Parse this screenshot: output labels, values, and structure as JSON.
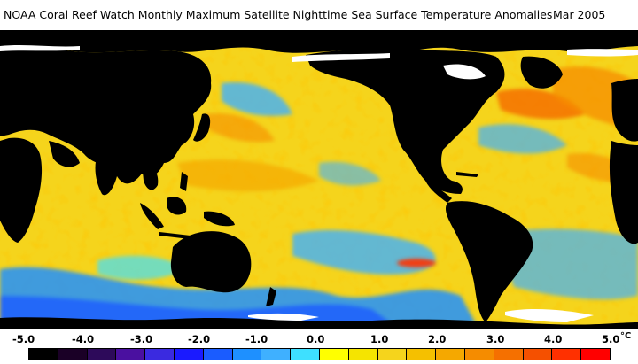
{
  "title": {
    "text": "NOAA Coral Reef Watch Monthly Maximum Satellite Nighttime Sea Surface Temperature Anomalies",
    "date": "Mar 2005"
  },
  "map": {
    "ocean_base": "#f5d41c",
    "land_color": "#000000",
    "ice_color": "#ffffff"
  },
  "legend": {
    "tick_labels": [
      "-5.0",
      "-4.0",
      "-3.0",
      "-2.0",
      "-1.0",
      "0.0",
      "1.0",
      "2.0",
      "3.0",
      "4.0",
      "5.0"
    ],
    "unit": "°C",
    "colors": [
      "#000000",
      "#1a0026",
      "#2d0a5a",
      "#4a10a0",
      "#3a2ae0",
      "#1a1aff",
      "#1a5cff",
      "#1e90ff",
      "#3fb0ff",
      "#3ee0ff",
      "#ffff00",
      "#f5e400",
      "#f5d41c",
      "#f5c000",
      "#f5a800",
      "#f58c00",
      "#f57000",
      "#f55000",
      "#ff3000",
      "#ff0000"
    ]
  }
}
